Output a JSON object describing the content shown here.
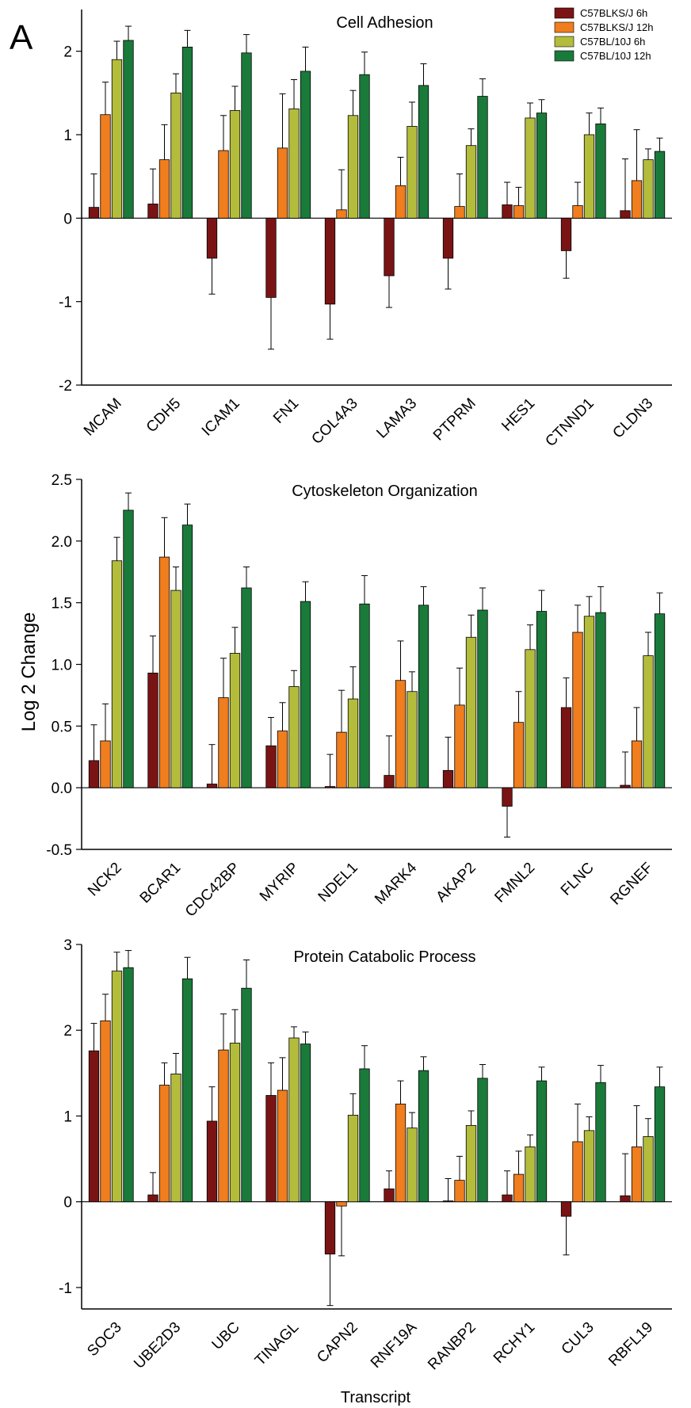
{
  "panel_label": "A",
  "y_axis_label": "Log 2 Change",
  "x_axis_label": "Transcript",
  "legend": [
    {
      "name": "C57BLKS/J 6h",
      "color": "#7a1414"
    },
    {
      "name": "C57BLKS/J 12h",
      "color": "#f07d1e"
    },
    {
      "name": "C57BL/10J 6h",
      "color": "#b4bc3c"
    },
    {
      "name": "C57BL/10J 12h",
      "color": "#1a7a3a"
    }
  ],
  "chart_data": [
    {
      "type": "bar",
      "title": "Cell Adhesion",
      "ylabel": "Log 2 Change",
      "ylim": [
        -2,
        2.5
      ],
      "yticks": [
        "-2",
        "-1",
        "0",
        "1",
        "2"
      ],
      "categories": [
        "MCAM",
        "CDH5",
        "ICAM1",
        "FN1",
        "COL4A3",
        "LAMA3",
        "PTPRM",
        "HES1",
        "CTNND1",
        "CLDN3"
      ],
      "series": [
        {
          "name": "C57BLKS/J 6h",
          "values": [
            0.13,
            0.17,
            -0.48,
            -0.95,
            -1.03,
            -0.69,
            -0.48,
            0.16,
            -0.39,
            0.09
          ],
          "errors": [
            0.4,
            0.42,
            0.43,
            0.62,
            0.42,
            0.38,
            0.37,
            0.27,
            0.33,
            0.62
          ]
        },
        {
          "name": "C57BLKS/J 12h",
          "values": [
            1.24,
            0.7,
            0.81,
            0.84,
            0.1,
            0.39,
            0.14,
            0.15,
            0.15,
            0.45
          ],
          "errors": [
            0.39,
            0.42,
            0.42,
            0.65,
            0.48,
            0.34,
            0.39,
            0.22,
            0.28,
            0.61
          ]
        },
        {
          "name": "C57BL/10J 6h",
          "values": [
            1.9,
            1.5,
            1.29,
            1.31,
            1.23,
            1.1,
            0.87,
            1.2,
            1.0,
            0.7
          ],
          "errors": [
            0.22,
            0.23,
            0.29,
            0.35,
            0.3,
            0.29,
            0.2,
            0.18,
            0.26,
            0.13
          ]
        },
        {
          "name": "C57BL/10J 12h",
          "values": [
            2.13,
            2.05,
            1.98,
            1.76,
            1.72,
            1.59,
            1.46,
            1.26,
            1.13,
            0.8
          ],
          "errors": [
            0.17,
            0.2,
            0.22,
            0.29,
            0.27,
            0.26,
            0.21,
            0.16,
            0.19,
            0.16
          ]
        }
      ]
    },
    {
      "type": "bar",
      "title": "Cytoskeleton Organization",
      "ylabel": "Log 2 Change",
      "ylim": [
        -0.5,
        2.5
      ],
      "yticks": [
        "-0.5",
        "0.0",
        "0.5",
        "1.0",
        "1.5",
        "2.0",
        "2.5"
      ],
      "categories": [
        "NCK2",
        "BCAR1",
        "CDC42BP",
        "MYRIP",
        "NDEL1",
        "MARK4",
        "AKAP2",
        "FMNL2",
        "FLNC",
        "RGNEF"
      ],
      "series": [
        {
          "name": "C57BLKS/J 6h",
          "values": [
            0.22,
            0.93,
            0.03,
            0.34,
            0.01,
            0.1,
            0.14,
            -0.15,
            0.65,
            0.02
          ],
          "errors": [
            0.29,
            0.3,
            0.32,
            0.23,
            0.26,
            0.32,
            0.27,
            0.25,
            0.24,
            0.27
          ]
        },
        {
          "name": "C57BLKS/J 12h",
          "values": [
            0.38,
            1.87,
            0.73,
            0.46,
            0.45,
            0.87,
            0.67,
            0.53,
            1.26,
            0.38
          ],
          "errors": [
            0.3,
            0.32,
            0.32,
            0.23,
            0.34,
            0.32,
            0.3,
            0.25,
            0.22,
            0.27
          ]
        },
        {
          "name": "C57BL/10J 6h",
          "values": [
            1.84,
            1.6,
            1.09,
            0.82,
            0.72,
            0.78,
            1.22,
            1.12,
            1.39,
            1.07
          ],
          "errors": [
            0.19,
            0.19,
            0.21,
            0.13,
            0.26,
            0.16,
            0.18,
            0.2,
            0.16,
            0.19
          ]
        },
        {
          "name": "C57BL/10J 12h",
          "values": [
            2.25,
            2.13,
            1.62,
            1.51,
            1.49,
            1.48,
            1.44,
            1.43,
            1.42,
            1.41
          ],
          "errors": [
            0.14,
            0.17,
            0.17,
            0.16,
            0.23,
            0.15,
            0.18,
            0.17,
            0.21,
            0.17
          ]
        }
      ]
    },
    {
      "type": "bar",
      "title": "Protein Catabolic Process",
      "ylabel": "Log 2 Change",
      "ylim": [
        -1.25,
        3
      ],
      "yticks": [
        "-1",
        "0",
        "1",
        "2",
        "3"
      ],
      "categories": [
        "SOC3",
        "UBE2D3",
        "UBC",
        "TINAGL",
        "CAPN2",
        "RNF19A",
        "RANBP2",
        "RCHY1",
        "CUL3",
        "RBFL19"
      ],
      "series": [
        {
          "name": "C57BLKS/J 6h",
          "values": [
            1.76,
            0.08,
            0.94,
            1.24,
            -0.61,
            0.15,
            0.01,
            0.08,
            -0.17,
            0.07
          ],
          "errors": [
            0.32,
            0.26,
            0.4,
            0.38,
            0.6,
            0.21,
            0.26,
            0.28,
            0.45,
            0.49
          ]
        },
        {
          "name": "C57BLKS/J 12h",
          "values": [
            2.11,
            1.36,
            1.77,
            1.3,
            -0.05,
            1.14,
            0.25,
            0.32,
            0.7,
            0.64
          ],
          "errors": [
            0.31,
            0.26,
            0.42,
            0.38,
            0.58,
            0.27,
            0.28,
            0.27,
            0.44,
            0.48
          ]
        },
        {
          "name": "C57BL/10J 6h",
          "values": [
            2.69,
            1.49,
            1.85,
            1.91,
            1.01,
            0.86,
            0.89,
            0.64,
            0.83,
            0.76
          ],
          "errors": [
            0.22,
            0.24,
            0.39,
            0.13,
            0.25,
            0.18,
            0.17,
            0.14,
            0.16,
            0.21
          ]
        },
        {
          "name": "C57BL/10J 12h",
          "values": [
            2.73,
            2.6,
            2.49,
            1.84,
            1.55,
            1.53,
            1.44,
            1.41,
            1.39,
            1.34
          ],
          "errors": [
            0.2,
            0.25,
            0.33,
            0.14,
            0.27,
            0.16,
            0.16,
            0.16,
            0.2,
            0.23
          ]
        }
      ]
    }
  ]
}
